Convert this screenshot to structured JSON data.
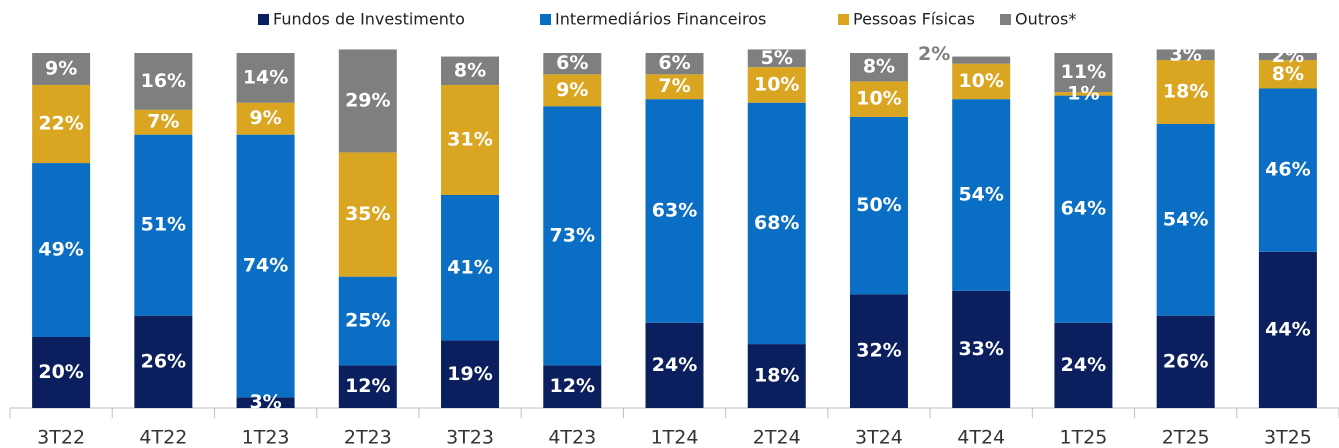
{
  "chart_data": {
    "type": "stacked_bar",
    "categories": [
      "3T22",
      "4T22",
      "1T23",
      "2T23",
      "3T23",
      "4T23",
      "1T24",
      "2T24",
      "3T24",
      "4T24",
      "1T25",
      "2T25",
      "3T25"
    ],
    "ylim": [
      0,
      100
    ],
    "series": [
      {
        "name": "Fundos de Investimento",
        "color": "#0b1f5e",
        "values": [
          20,
          26,
          3,
          12,
          19,
          12,
          24,
          18,
          32,
          33,
          24,
          26,
          44
        ],
        "value_labels": [
          "20%",
          "26%",
          "3%",
          "12%",
          "19%",
          "12%",
          "24%",
          "18%",
          "32%",
          "33%",
          "24%",
          "26%",
          "44%"
        ]
      },
      {
        "name": "Intermediários Financeiros",
        "color": "#0a6fc4",
        "values": [
          49,
          51,
          74,
          25,
          41,
          73,
          63,
          68,
          50,
          54,
          64,
          54,
          46
        ],
        "value_labels": [
          "49%",
          "51%",
          "74%",
          "25%",
          "41%",
          "73%",
          "63%",
          "68%",
          "50%",
          "54%",
          "64%",
          "54%",
          "46%"
        ]
      },
      {
        "name": "Pessoas Físicas",
        "color": "#daa520",
        "values": [
          22,
          7,
          9,
          35,
          31,
          9,
          7,
          10,
          10,
          10,
          1,
          18,
          8
        ],
        "value_labels": [
          "22%",
          "7%",
          "9%",
          "35%",
          "31%",
          "9%",
          "7%",
          "10%",
          "10%",
          "10%",
          "1%",
          "18%",
          "8%"
        ]
      },
      {
        "name": "Outros*",
        "color": "#7f7f7f",
        "values": [
          9,
          16,
          14,
          29,
          8,
          6,
          6,
          5,
          8,
          2,
          11,
          3,
          2
        ],
        "value_labels": [
          "9%",
          "16%",
          "14%",
          "29%",
          "8%",
          "6%",
          "6%",
          "5%",
          "8%",
          "2%",
          "11%",
          "3%",
          "2%"
        ]
      }
    ]
  }
}
